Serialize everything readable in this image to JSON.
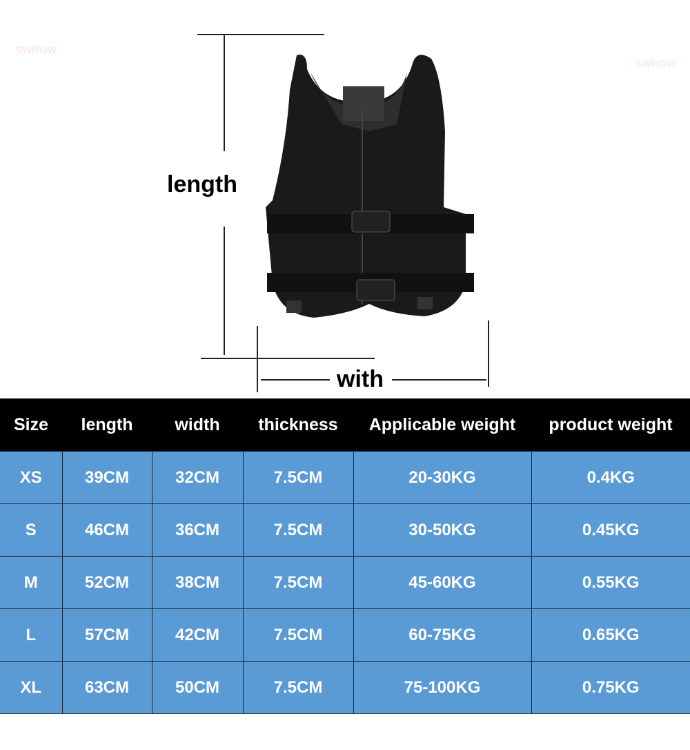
{
  "watermarks": [
    "SWROW",
    "SWROW"
  ],
  "diagram": {
    "length_label": "length",
    "width_label": "with"
  },
  "table": {
    "headers": [
      "Size",
      "length",
      "width",
      "thickness",
      "Applicable weight",
      "product weight"
    ],
    "rows": [
      [
        "XS",
        "39CM",
        "32CM",
        "7.5CM",
        "20-30KG",
        "0.4KG"
      ],
      [
        "S",
        "46CM",
        "36CM",
        "7.5CM",
        "30-50KG",
        "0.45KG"
      ],
      [
        "M",
        "52CM",
        "38CM",
        "7.5CM",
        "45-60KG",
        "0.55KG"
      ],
      [
        "L",
        "57CM",
        "42CM",
        "7.5CM",
        "60-75KG",
        "0.65KG"
      ],
      [
        "XL",
        "63CM",
        "50CM",
        "7.5CM",
        "75-100KG",
        "0.75KG"
      ]
    ]
  }
}
